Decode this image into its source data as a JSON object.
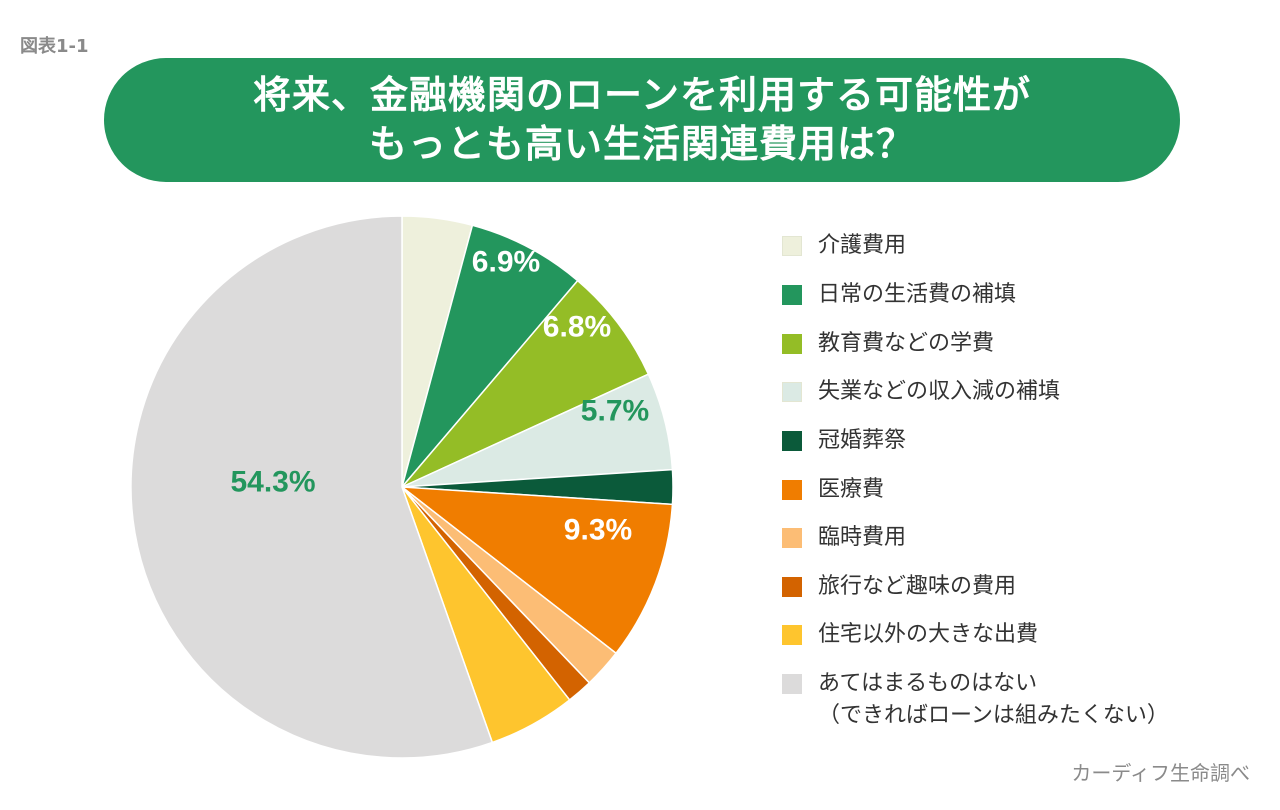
{
  "figure_label": "図表1-1",
  "title_lines": [
    "将来、金融機関のローンを利用する可能性が",
    "もっとも高い生活関連費用は？"
  ],
  "source": "カーディフ生命調べ",
  "colors": {
    "banner": "#23965d",
    "label_green": "#23965d",
    "label_white": "#ffffff"
  },
  "chart_data": {
    "type": "pie",
    "title": "将来、金融機関のローンを利用する可能性がもっとも高い生活関連費用は？",
    "slices": [
      {
        "name": "介護費用",
        "value": 4.1,
        "label": "",
        "color": "#eef0dc"
      },
      {
        "name": "日常の生活費の補填",
        "value": 6.9,
        "label": "6.9%",
        "color": "#23965d",
        "label_color": "#ffffff"
      },
      {
        "name": "教育費などの学費",
        "value": 6.8,
        "label": "6.8%",
        "color": "#94bd26",
        "label_color": "#ffffff"
      },
      {
        "name": "失業などの収入減の補填",
        "value": 5.7,
        "label": "5.7%",
        "color": "#dbeae4",
        "label_color": "#23965d"
      },
      {
        "name": "冠婚葬祭",
        "value": 2.0,
        "label": "",
        "color": "#0b5a3a"
      },
      {
        "name": "医療費",
        "value": 9.3,
        "label": "9.3%",
        "color": "#f07d00",
        "label_color": "#ffffff"
      },
      {
        "name": "臨時費用",
        "value": 2.3,
        "label": "",
        "color": "#fcbd75"
      },
      {
        "name": "旅行など趣味の費用",
        "value": 1.5,
        "label": "",
        "color": "#d36300"
      },
      {
        "name": "住宅以外の大きな出費",
        "value": 5.1,
        "label": "",
        "color": "#fec52e"
      },
      {
        "name": "あてはまるものはない\n（できればローンは組みたくない）",
        "value": 54.3,
        "label": "54.3%",
        "color": "#dcdbdb",
        "label_color": "#23965d"
      }
    ],
    "legend": [
      {
        "text": "介護費用",
        "color": "#eef0dc"
      },
      {
        "text": "日常の生活費の補填",
        "color": "#23965d"
      },
      {
        "text": "教育費などの学費",
        "color": "#94bd26"
      },
      {
        "text": "失業などの収入減の補填",
        "color": "#dbeae4"
      },
      {
        "text": "冠婚葬祭",
        "color": "#0b5a3a"
      },
      {
        "text": "医療費",
        "color": "#f07d00"
      },
      {
        "text": "臨時費用",
        "color": "#fcbd75"
      },
      {
        "text": "旅行など趣味の費用",
        "color": "#d36300"
      },
      {
        "text": "住宅以外の大きな出費",
        "color": "#fec52e"
      },
      {
        "text": "あてはまるものはない",
        "text2": "（できればローンは組みたくない）",
        "color": "#dcdbdb"
      }
    ],
    "legend_placement": "right"
  }
}
